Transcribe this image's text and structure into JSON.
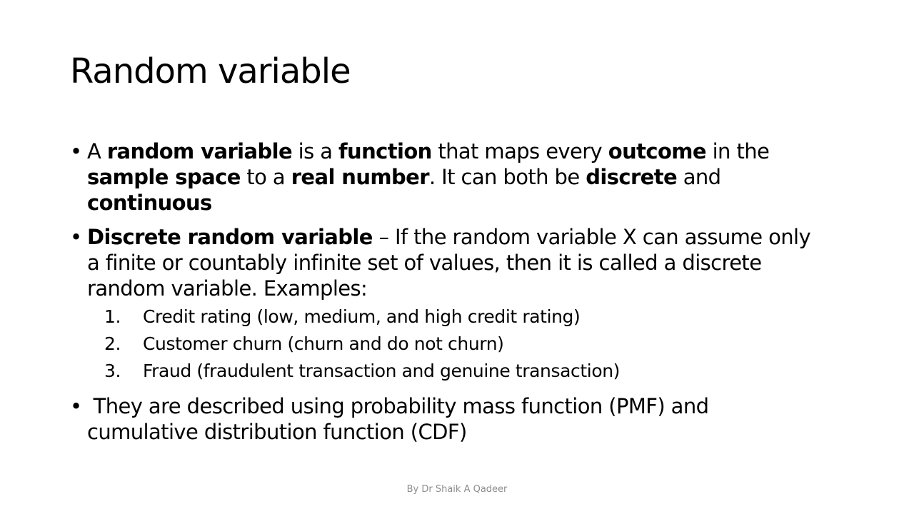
{
  "slide": {
    "title": "Random variable",
    "footer": "By Dr Shaik A Qadeer",
    "bullet_glyph": "•",
    "bullet1": {
      "l1_a": "A ",
      "l1_b": "random variable",
      "l1_c": " is a ",
      "l1_d": "function",
      "l1_e": " that maps every ",
      "l1_f": "outcome",
      "l1_g": " in the",
      "l2_a": "sample space",
      "l2_b": " to a ",
      "l2_c": "real number",
      "l2_d": ". It can both be ",
      "l2_e": "discrete",
      "l2_f": " and",
      "l3_a": "continuous"
    },
    "bullet2": {
      "l1_a": "Discrete random variable",
      "l1_b": " – If the random variable X can assume only",
      "l2": "a finite or countably infinite set of values, then it is called a discrete",
      "l3": "random variable. Examples:",
      "examples": [
        {
          "num": "1.",
          "text": "Credit rating (low, medium, and high credit rating)"
        },
        {
          "num": "2.",
          "text": "Customer churn (churn and do not churn)"
        },
        {
          "num": "3.",
          "text": "Fraud (fraudulent transaction and genuine transaction)"
        }
      ]
    },
    "bullet3": {
      "l1": " They are described using probability mass function (PMF) and",
      "l2": "cumulative distribution function (CDF)"
    }
  }
}
